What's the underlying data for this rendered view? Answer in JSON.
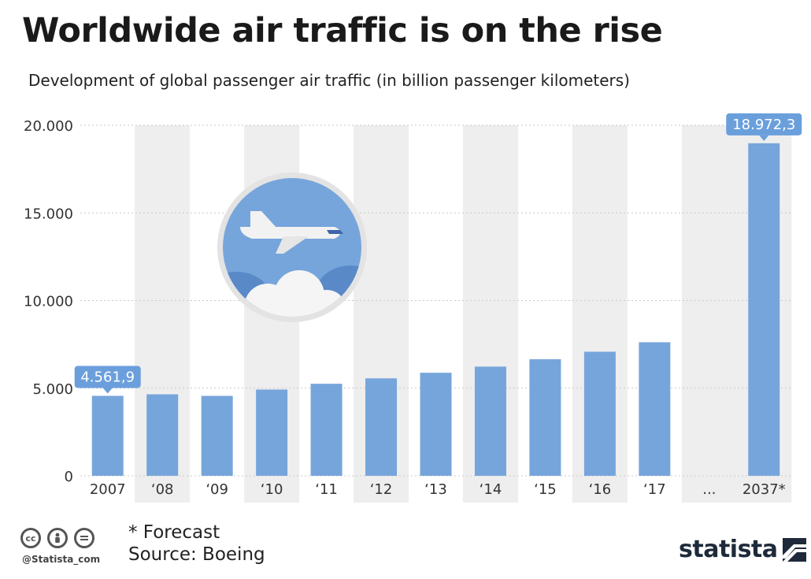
{
  "header": {
    "title": "Worldwide air traffic is on the rise",
    "subtitle": "Development of global passenger air traffic (in billion passenger kilometers)"
  },
  "chart_data": {
    "type": "bar",
    "categories": [
      "2007",
      "‘08",
      "‘09",
      "‘10",
      "‘11",
      "‘12",
      "‘13",
      "‘14",
      "‘15",
      "‘16",
      "‘17",
      "...",
      "2037*"
    ],
    "values": [
      4561.9,
      4650,
      4560,
      4920,
      5250,
      5560,
      5880,
      6230,
      6650,
      7080,
      7620,
      null,
      18972.3
    ],
    "ylim": [
      0,
      20000
    ],
    "yticks": [
      {
        "value": 0,
        "label": "0"
      },
      {
        "value": 5000,
        "label": "5.000"
      },
      {
        "value": 10000,
        "label": "10.000"
      },
      {
        "value": 15000,
        "label": "15.000"
      },
      {
        "value": 20000,
        "label": "20.000"
      }
    ],
    "data_labels": [
      {
        "index": 0,
        "text": "4.561,9"
      },
      {
        "index": 12,
        "text": "18.972,3"
      }
    ],
    "grid": true,
    "colors": {
      "bar": "#76a5db",
      "label_bg": "#6a9fdc",
      "band": "#eeeeee",
      "grid": "#c8c8c8"
    }
  },
  "illustration": {
    "icon": "airplane-icon"
  },
  "footer": {
    "notes": [
      "* Forecast",
      "Source: Boeing"
    ],
    "handle": "@Statista_com",
    "license_icons": [
      "cc",
      "by",
      "nd"
    ],
    "brand": "statista"
  }
}
